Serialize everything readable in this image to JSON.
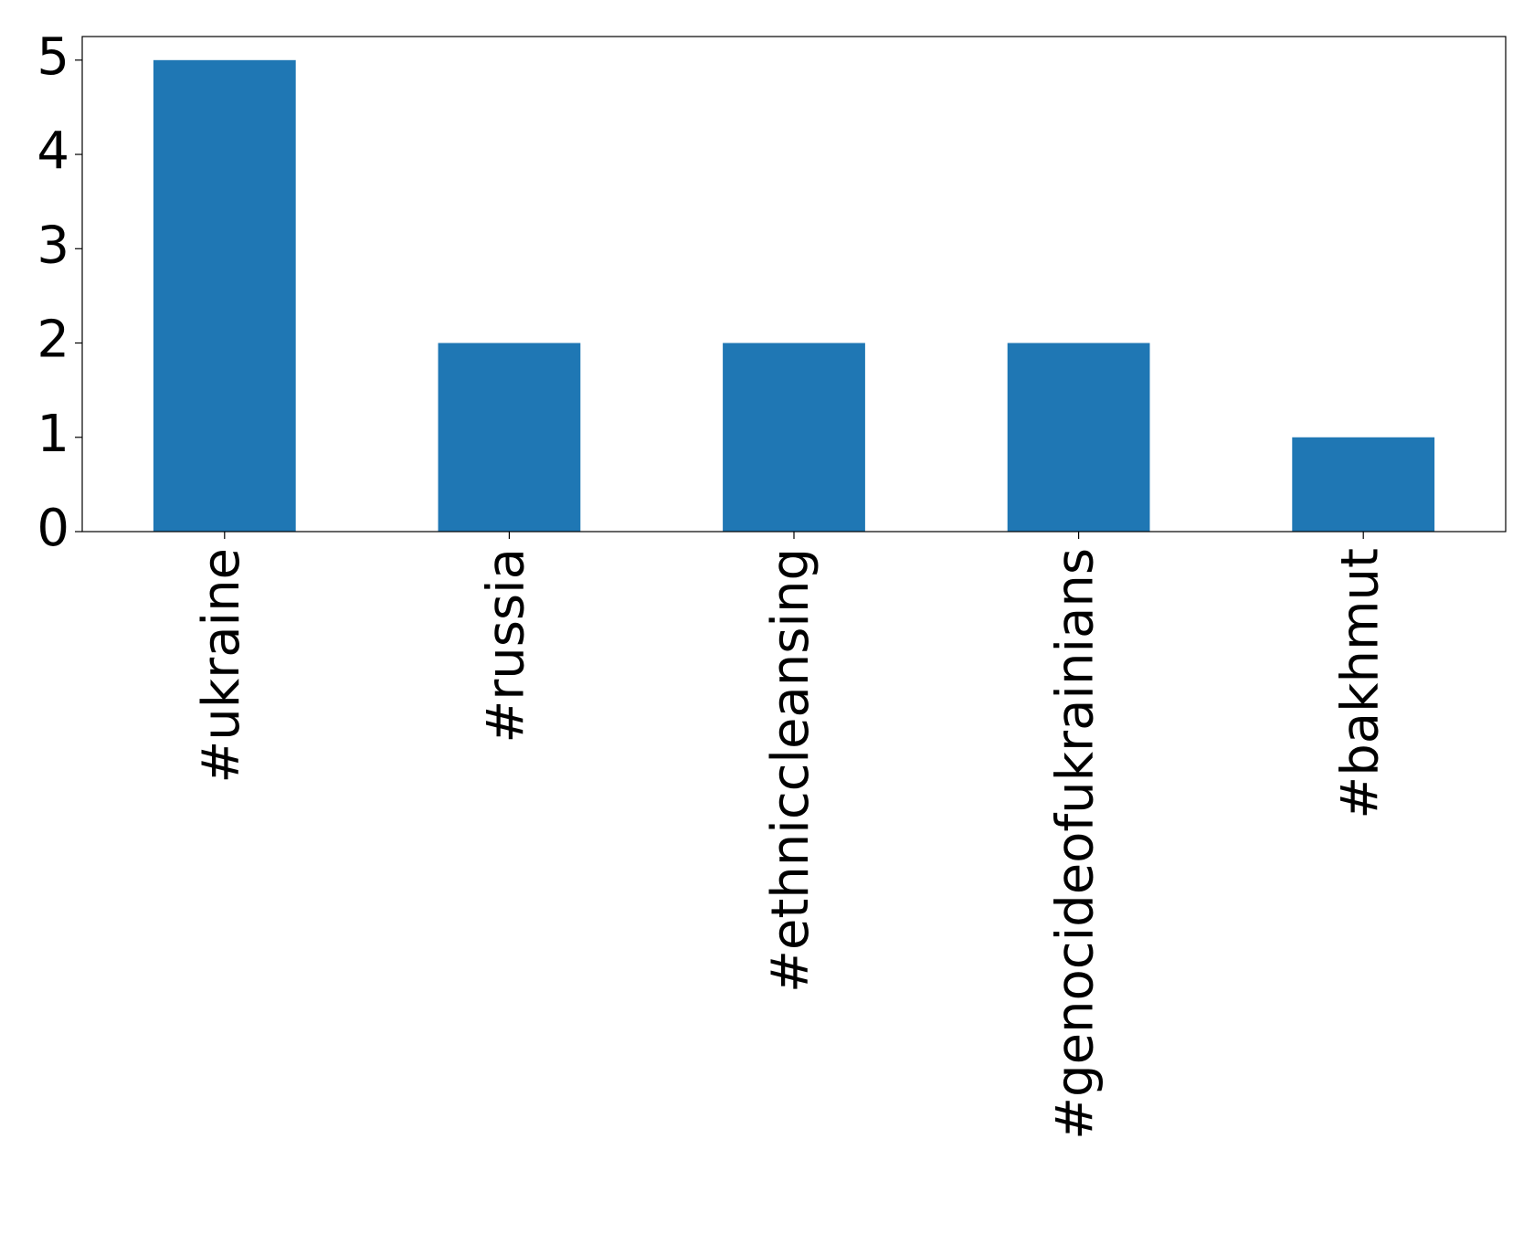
{
  "chart_data": {
    "type": "bar",
    "categories": [
      "#ukraine",
      "#russia",
      "#ethniccleansing",
      "#genocideofukrainians",
      "#bakhmut"
    ],
    "values": [
      5,
      2,
      2,
      2,
      1
    ],
    "color": "#1f77b4",
    "ylim": [
      0,
      5.25
    ],
    "yticks": [
      0,
      1,
      2,
      3,
      4,
      5
    ],
    "grid": false
  }
}
